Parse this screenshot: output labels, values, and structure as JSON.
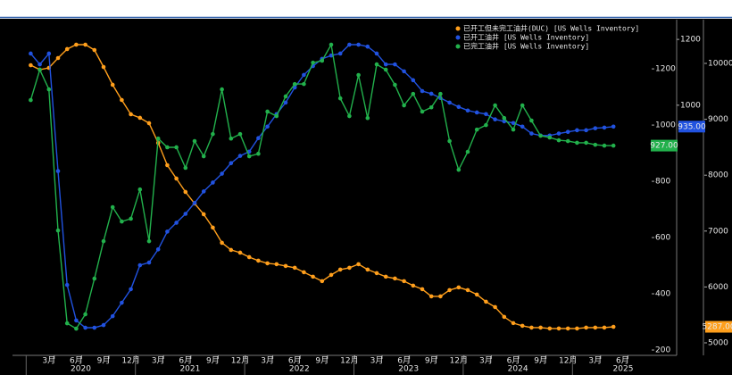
{
  "chart_data": {
    "type": "line",
    "x": [
      "2020-01",
      "2020-02",
      "2020-03",
      "2020-04",
      "2020-05",
      "2020-06",
      "2020-07",
      "2020-08",
      "2020-09",
      "2020-10",
      "2020-11",
      "2020-12",
      "2021-01",
      "2021-02",
      "2021-03",
      "2021-04",
      "2021-05",
      "2021-06",
      "2021-07",
      "2021-08",
      "2021-09",
      "2021-10",
      "2021-11",
      "2021-12",
      "2022-01",
      "2022-02",
      "2022-03",
      "2022-04",
      "2022-05",
      "2022-06",
      "2022-07",
      "2022-08",
      "2022-09",
      "2022-10",
      "2022-11",
      "2022-12",
      "2023-01",
      "2023-02",
      "2023-03",
      "2023-04",
      "2023-05",
      "2023-06",
      "2023-07",
      "2023-08",
      "2023-09",
      "2023-10",
      "2023-11",
      "2023-12",
      "2024-01",
      "2024-02",
      "2024-03",
      "2024-04",
      "2024-05",
      "2024-06",
      "2024-07",
      "2024-08",
      "2024-09",
      "2024-10",
      "2024-11",
      "2024-12",
      "2025-01",
      "2025-02",
      "2025-03",
      "2025-04",
      "2025-05"
    ],
    "xlim": [
      "2019-11",
      "2025-09"
    ],
    "xticks": [
      {
        "value": "2020-03",
        "label": "3月"
      },
      {
        "value": "2020-06",
        "label": "6月"
      },
      {
        "value": "2020-09",
        "label": "9月"
      },
      {
        "value": "2020-12",
        "label": "12月"
      },
      {
        "value": "2021-03",
        "label": "3月"
      },
      {
        "value": "2021-06",
        "label": "6月"
      },
      {
        "value": "2021-09",
        "label": "9月"
      },
      {
        "value": "2021-12",
        "label": "12月"
      },
      {
        "value": "2022-03",
        "label": "3月"
      },
      {
        "value": "2022-06",
        "label": "6月"
      },
      {
        "value": "2022-09",
        "label": "9月"
      },
      {
        "value": "2022-12",
        "label": "12月"
      },
      {
        "value": "2023-03",
        "label": "3月"
      },
      {
        "value": "2023-06",
        "label": "6月"
      },
      {
        "value": "2023-09",
        "label": "9月"
      },
      {
        "value": "2023-12",
        "label": "12月"
      },
      {
        "value": "2024-03",
        "label": "3月"
      },
      {
        "value": "2024-06",
        "label": "6月"
      },
      {
        "value": "2024-09",
        "label": "9月"
      },
      {
        "value": "2024-12",
        "label": "12月"
      },
      {
        "value": "2025-03",
        "label": "3月"
      },
      {
        "value": "2025-06",
        "label": "6月"
      }
    ],
    "years": [
      "2020",
      "2021",
      "2022",
      "2023",
      "2024",
      "2025"
    ],
    "ylim": [
      240,
      1260
    ],
    "yticks": [
      1000,
      1200
    ],
    "y2lim": [
      181,
      1375
    ],
    "y2ticks": [
      200,
      400,
      600,
      800,
      1000,
      1200
    ],
    "y3lim": [
      4776,
      10783
    ],
    "y3ticks": [
      5000,
      6000,
      7000,
      8000,
      9000,
      10000
    ],
    "grid": false,
    "legend": "top-right",
    "series": [
      {
        "name": "已开工但未完工油井(DUC) [US Wells Inventory]",
        "color": "#ff9f1c",
        "axis": "y3",
        "last_label": "5287.00",
        "values": [
          9968,
          9888,
          9920,
          10096,
          10256,
          10335,
          10335,
          10240,
          9936,
          9617,
          9345,
          9090,
          9026,
          8930,
          8579,
          8179,
          7940,
          7700,
          7493,
          7301,
          7062,
          6790,
          6662,
          6614,
          6534,
          6471,
          6423,
          6407,
          6375,
          6343,
          6263,
          6184,
          6104,
          6215,
          6311,
          6343,
          6407,
          6311,
          6247,
          6184,
          6152,
          6104,
          6024,
          5960,
          5832,
          5832,
          5944,
          5992,
          5944,
          5864,
          5736,
          5640,
          5464,
          5353,
          5305,
          5273,
          5273,
          5257,
          5257,
          5257,
          5257,
          5273,
          5273,
          5273,
          5287
        ]
      },
      {
        "name": "已开工油井 [US Wells Inventory]",
        "color": "#2152e0",
        "axis": "y",
        "last_label": "935.00",
        "values": [
          1157,
          1124,
          1157,
          800,
          454,
          346,
          324,
          324,
          332,
          359,
          400,
          441,
          514,
          522,
          562,
          616,
          643,
          670,
          703,
          738,
          765,
          792,
          824,
          846,
          859,
          900,
          935,
          973,
          1008,
          1054,
          1092,
          1119,
          1141,
          1151,
          1157,
          1184,
          1184,
          1178,
          1157,
          1124,
          1124,
          1103,
          1076,
          1043,
          1035,
          1022,
          1008,
          995,
          984,
          978,
          973,
          957,
          951,
          946,
          935,
          914,
          908,
          908,
          914,
          919,
          924,
          924,
          930,
          932,
          935
        ]
      },
      {
        "name": "已完工油井 [US Wells Inventory]",
        "color": "#22b14c",
        "axis": "y2",
        "last_label": "927.00",
        "values": [
          1089,
          1197,
          1127,
          625,
          295,
          276,
          327,
          454,
          587,
          708,
          657,
          667,
          771,
          587,
          952,
          921,
          921,
          848,
          943,
          889,
          968,
          1127,
          952,
          968,
          889,
          898,
          1048,
          1032,
          1102,
          1146,
          1146,
          1222,
          1229,
          1286,
          1095,
          1032,
          1178,
          1025,
          1216,
          1197,
          1143,
          1070,
          1111,
          1048,
          1063,
          1111,
          943,
          841,
          905,
          984,
          1000,
          1070,
          1025,
          984,
          1070,
          1016,
          962,
          956,
          946,
          943,
          937,
          937,
          930,
          927,
          927
        ]
      }
    ]
  }
}
